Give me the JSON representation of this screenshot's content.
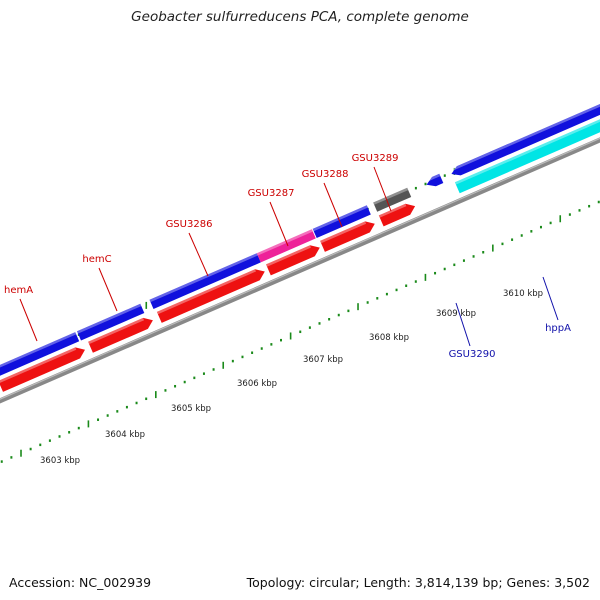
{
  "header": {
    "title": "Geobacter sulfurreducens PCA, complete genome"
  },
  "footer": {
    "accession": "Accession: NC_002939",
    "summary": "Topology: circular; Length: 3,814,139 bp; Genes: 3,502"
  },
  "colors": {
    "forward_cds": "#1010dd",
    "reverse_cds": "#ee1111",
    "highlight_cds": "#ee2299",
    "dark_feature": "#555555",
    "cyan_feature": "#00e5e5",
    "backbone": "#888888",
    "tick": "#1a8a1a",
    "label_red": "#cc0000",
    "label_blue": "#1111aa"
  },
  "map": {
    "kbp_labels": [
      "3603 kbp",
      "3604 kbp",
      "3605 kbp",
      "3606 kbp",
      "3607 kbp",
      "3608 kbp",
      "3609 kbp",
      "3610 kbp"
    ],
    "gene_labels": [
      {
        "name": "hemA",
        "strand": "top"
      },
      {
        "name": "hemC",
        "strand": "top"
      },
      {
        "name": "GSU3286",
        "strand": "top"
      },
      {
        "name": "GSU3287",
        "strand": "top"
      },
      {
        "name": "GSU3288",
        "strand": "top"
      },
      {
        "name": "GSU3289",
        "strand": "top"
      },
      {
        "name": "GSU3290",
        "strand": "bottom"
      },
      {
        "name": "hppA",
        "strand": "bottom"
      }
    ]
  }
}
